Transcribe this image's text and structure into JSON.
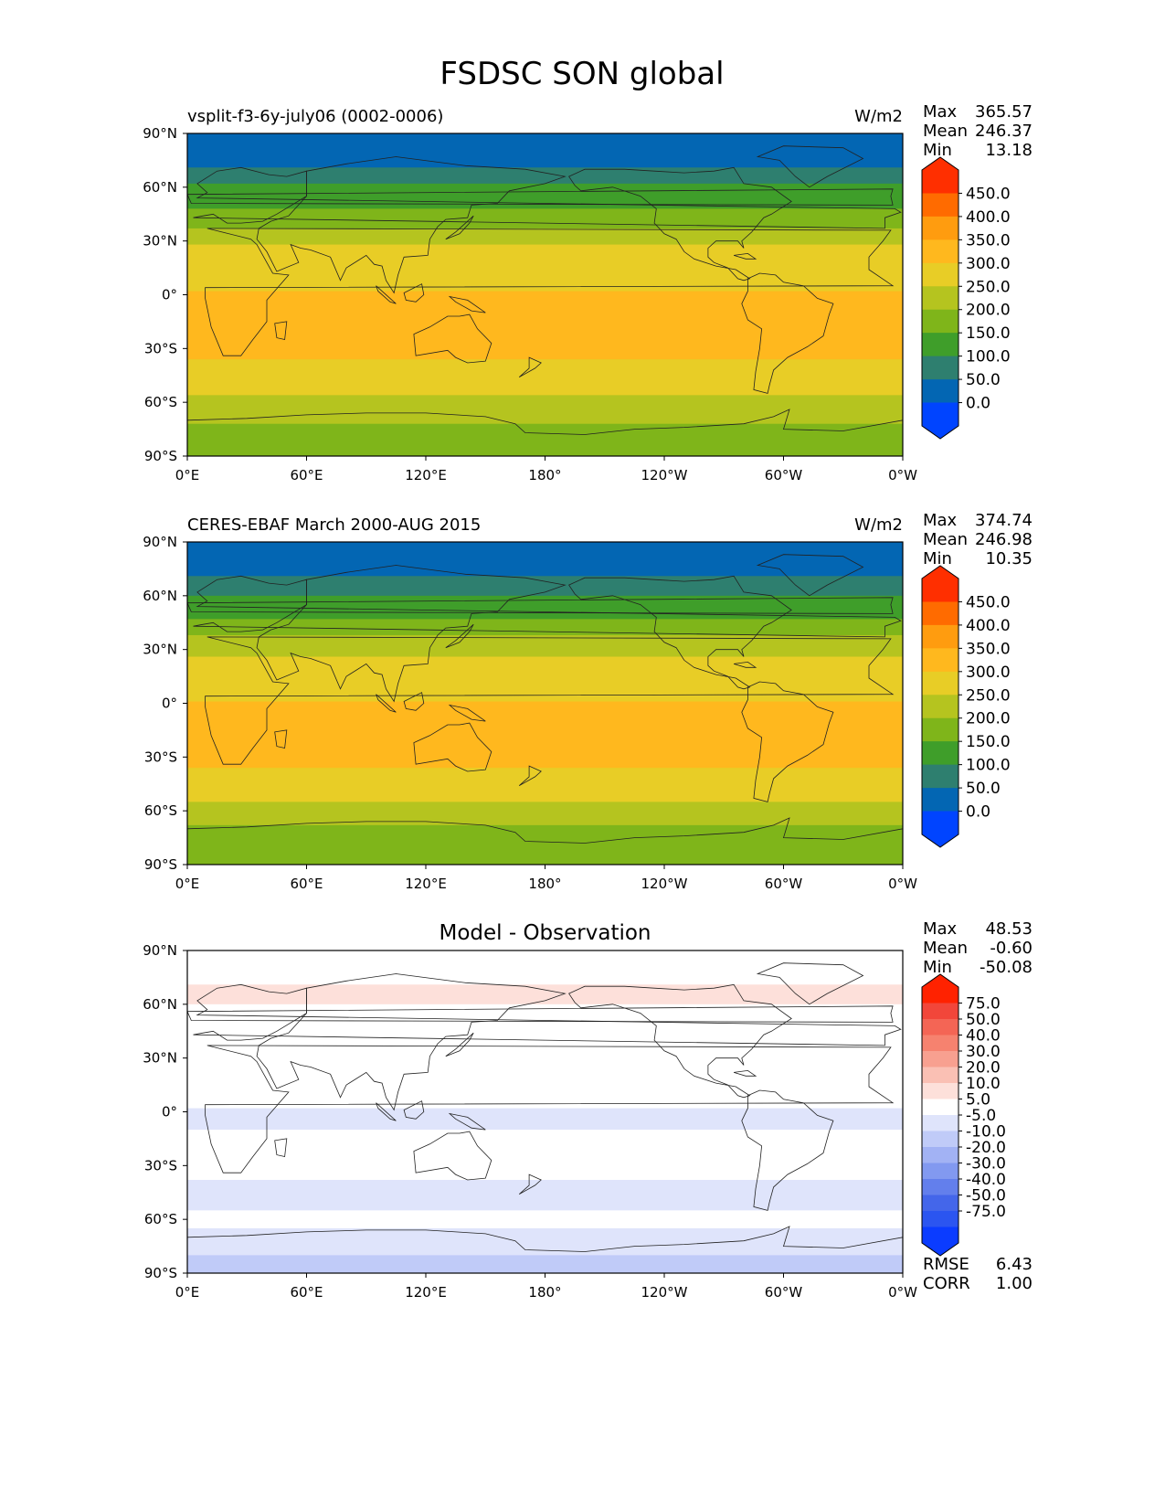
{
  "figure": {
    "title": "FSDSC SON global"
  },
  "chart_data": [
    {
      "type": "heatmap",
      "left_title": "vsplit-f3-6y-july06 (0002-0006)",
      "center_title": "",
      "units": "W/m2",
      "stats": [
        {
          "label": "Max",
          "value": "365.57"
        },
        {
          "label": "Mean",
          "value": "246.37"
        },
        {
          "label": "Min",
          "value": "13.18"
        }
      ],
      "extra_stats": [],
      "xticks": [
        "0°E",
        "60°E",
        "120°E",
        "180°",
        "120°W",
        "60°W",
        "0°W"
      ],
      "yticks": [
        "90°N",
        "60°N",
        "30°N",
        "0°",
        "30°S",
        "60°S",
        "90°S"
      ],
      "xlim": [
        0,
        360
      ],
      "ylim": [
        -90,
        90
      ],
      "colorbar": {
        "labels": [
          "450.0",
          "400.0",
          "350.0",
          "300.0",
          "250.0",
          "200.0",
          "150.0",
          "100.0",
          "50.0",
          "0.0"
        ],
        "colors": [
          "#ff2f00",
          "#ff6b00",
          "#ff9c0f",
          "#ffb81e",
          "#e8cd26",
          "#b5c41f",
          "#7fb51a",
          "#3f9e2a",
          "#2e7f6f",
          "#0366b3",
          "#0044ff"
        ]
      },
      "zonal_bands": [
        {
          "lat": [
            90,
            71
          ],
          "value": 40
        },
        {
          "lat": [
            71,
            62
          ],
          "value": 90
        },
        {
          "lat": [
            62,
            48
          ],
          "value": 140
        },
        {
          "lat": [
            48,
            37
          ],
          "value": 190
        },
        {
          "lat": [
            37,
            28
          ],
          "value": 240
        },
        {
          "lat": [
            28,
            2
          ],
          "value": 290
        },
        {
          "lat": [
            2,
            -36
          ],
          "value": 320
        },
        {
          "lat": [
            -36,
            -56
          ],
          "value": 290
        },
        {
          "lat": [
            -56,
            -72
          ],
          "value": 240
        },
        {
          "lat": [
            -72,
            -90
          ],
          "value": 190
        }
      ]
    },
    {
      "type": "heatmap",
      "left_title": "CERES-EBAF March 2000-AUG 2015",
      "center_title": "",
      "units": "W/m2",
      "stats": [
        {
          "label": "Max",
          "value": "374.74"
        },
        {
          "label": "Mean",
          "value": "246.98"
        },
        {
          "label": "Min",
          "value": "10.35"
        }
      ],
      "extra_stats": [],
      "xticks": [
        "0°E",
        "60°E",
        "120°E",
        "180°",
        "120°W",
        "60°W",
        "0°W"
      ],
      "yticks": [
        "90°N",
        "60°N",
        "30°N",
        "0°",
        "30°S",
        "60°S",
        "90°S"
      ],
      "xlim": [
        0,
        360
      ],
      "ylim": [
        -90,
        90
      ],
      "colorbar": {
        "labels": [
          "450.0",
          "400.0",
          "350.0",
          "300.0",
          "250.0",
          "200.0",
          "150.0",
          "100.0",
          "50.0",
          "0.0"
        ],
        "colors": [
          "#ff2f00",
          "#ff6b00",
          "#ff9c0f",
          "#ffb81e",
          "#e8cd26",
          "#b5c41f",
          "#7fb51a",
          "#3f9e2a",
          "#2e7f6f",
          "#0366b3",
          "#0044ff"
        ]
      },
      "zonal_bands": [
        {
          "lat": [
            90,
            71
          ],
          "value": 40
        },
        {
          "lat": [
            71,
            60
          ],
          "value": 90
        },
        {
          "lat": [
            60,
            47
          ],
          "value": 140
        },
        {
          "lat": [
            47,
            38
          ],
          "value": 190
        },
        {
          "lat": [
            38,
            26
          ],
          "value": 240
        },
        {
          "lat": [
            26,
            1
          ],
          "value": 290
        },
        {
          "lat": [
            1,
            -36
          ],
          "value": 320
        },
        {
          "lat": [
            -36,
            -55
          ],
          "value": 290
        },
        {
          "lat": [
            -55,
            -68
          ],
          "value": 240
        },
        {
          "lat": [
            -68,
            -90
          ],
          "value": 190
        }
      ]
    },
    {
      "type": "heatmap",
      "left_title": "",
      "center_title": "Model - Observation",
      "units": "",
      "stats": [
        {
          "label": "Max",
          "value": "48.53"
        },
        {
          "label": "Mean",
          "value": "-0.60"
        },
        {
          "label": "Min",
          "value": "-50.08"
        }
      ],
      "extra_stats": [
        {
          "label": "RMSE",
          "value": "6.43"
        },
        {
          "label": "CORR",
          "value": "1.00"
        }
      ],
      "xticks": [
        "0°E",
        "60°E",
        "120°E",
        "180°",
        "120°W",
        "60°W",
        "0°W"
      ],
      "yticks": [
        "90°N",
        "60°N",
        "30°N",
        "0°",
        "30°S",
        "60°S",
        "90°S"
      ],
      "xlim": [
        0,
        360
      ],
      "ylim": [
        -90,
        90
      ],
      "colorbar": {
        "labels": [
          "75.0",
          "50.0",
          "40.0",
          "30.0",
          "20.0",
          "10.0",
          "5.0",
          "-5.0",
          "-10.0",
          "-20.0",
          "-30.0",
          "-40.0",
          "-50.0",
          "-75.0"
        ],
        "colors": [
          "#ff2200",
          "#f2463a",
          "#f46555",
          "#f6826f",
          "#f8a090",
          "#fac0b4",
          "#fde0da",
          "#ffffff",
          "#dfe4fb",
          "#c0cbf8",
          "#a2b2f4",
          "#8299f0",
          "#637fec",
          "#4466ea",
          "#2b55f0",
          "#0b3cff"
        ]
      },
      "zonal_bands": [
        {
          "lat": [
            90,
            71
          ],
          "value": 0
        },
        {
          "lat": [
            71,
            60
          ],
          "value": 6
        },
        {
          "lat": [
            60,
            48
          ],
          "value": 0
        },
        {
          "lat": [
            48,
            28
          ],
          "value": 0
        },
        {
          "lat": [
            28,
            2
          ],
          "value": 0
        },
        {
          "lat": [
            2,
            -10
          ],
          "value": -6
        },
        {
          "lat": [
            -10,
            -38
          ],
          "value": 0
        },
        {
          "lat": [
            -38,
            -55
          ],
          "value": -7
        },
        {
          "lat": [
            -55,
            -65
          ],
          "value": 0
        },
        {
          "lat": [
            -65,
            -80
          ],
          "value": -8
        },
        {
          "lat": [
            -80,
            -90
          ],
          "value": -14
        }
      ]
    }
  ]
}
